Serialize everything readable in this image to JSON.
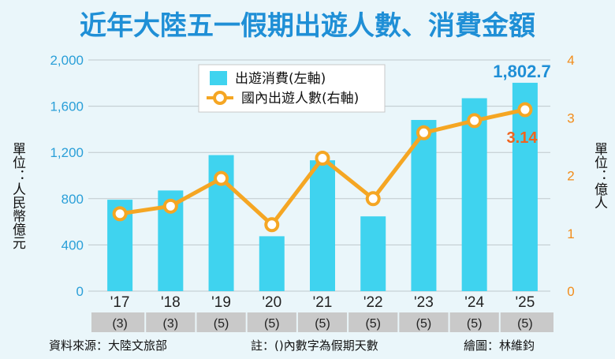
{
  "chart_data": {
    "type": "bar",
    "title": "近年大陸五一假期出遊人數、消費金額",
    "categories": [
      "'17",
      "'18",
      "'19",
      "'20",
      "'21",
      "'22",
      "'23",
      "'24",
      "'25"
    ],
    "category_notes": [
      "(3)",
      "(3)",
      "(5)",
      "(5)",
      "(5)",
      "(5)",
      "(5)",
      "(5)",
      "(5)"
    ],
    "series": [
      {
        "name": "出遊消費(左軸)",
        "type": "bar",
        "axis": "left",
        "color": "#3fd3ef",
        "values": [
          791,
          871,
          1177,
          475,
          1132,
          647,
          1481,
          1669,
          1802.7
        ]
      },
      {
        "name": "國內出遊人數(右軸)",
        "type": "line",
        "axis": "right",
        "color": "#f5a623",
        "values": [
          1.34,
          1.47,
          1.95,
          1.15,
          2.3,
          1.6,
          2.74,
          2.95,
          3.14
        ]
      }
    ],
    "data_labels": {
      "bar_last": "1,802.7",
      "line_last": "3.14"
    },
    "y_left": {
      "label": "單位：人民幣億元",
      "range": [
        0,
        2000
      ],
      "ticks": [
        "0",
        "400",
        "800",
        "1,200",
        "1,600",
        "2,000"
      ]
    },
    "y_right": {
      "label": "單位：億人",
      "range": [
        0,
        4
      ],
      "ticks": [
        "0",
        "1",
        "2",
        "3",
        "4"
      ]
    },
    "grid": true,
    "legend_placement": "top-center",
    "footer": {
      "source": "資料來源：大陸文旅部",
      "note": "註：()內數字為假期天數",
      "credit": "繪圖：林維鈞"
    }
  }
}
